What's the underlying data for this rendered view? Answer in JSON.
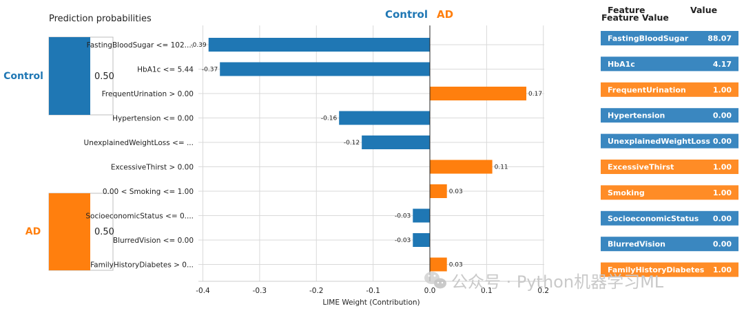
{
  "colors": {
    "control": "#1f77b4",
    "ad": "#ff7f0e",
    "table_control": "#3a87c0",
    "table_ad": "#ff8c26",
    "grid": "#d9d9d9"
  },
  "proba": {
    "title": "Prediction probabilities",
    "items": [
      {
        "label": "Control",
        "value": "0.50",
        "fraction": 0.5
      },
      {
        "label": "AD",
        "value": "0.50",
        "fraction": 0.5
      }
    ]
  },
  "header": {
    "control": "Control",
    "ad": "AD"
  },
  "chart_data": {
    "type": "bar",
    "orientation": "horizontal",
    "xlabel": "LIME Weight (Contribution)",
    "xlim": [
      -0.42,
      0.2
    ],
    "xticks": [
      "-0.4",
      "-0.3",
      "-0.2",
      "-0.1",
      "0.0",
      "0.1",
      "0.2"
    ],
    "xtick_values": [
      -0.4,
      -0.3,
      -0.2,
      -0.1,
      0.0,
      0.1,
      0.2
    ],
    "grid": true,
    "categories": [
      "FastingBloodSugar <= 102....",
      "HbA1c <= 5.44",
      "FrequentUrination > 0.00",
      "Hypertension <= 0.00",
      "UnexplainedWeightLoss <= ...",
      "ExcessiveThirst > 0.00",
      "0.00 < Smoking <= 1.00",
      "SocioeconomicStatus <= 0....",
      "BlurredVision <= 0.00",
      "FamilyHistoryDiabetes > 0..."
    ],
    "values": [
      -0.39,
      -0.37,
      0.17,
      -0.16,
      -0.12,
      0.11,
      0.03,
      -0.03,
      -0.03,
      0.03
    ],
    "labels": [
      "-0.39",
      "-0.37",
      "0.17",
      "-0.16",
      "-0.12",
      "0.11",
      "0.03",
      "-0.03",
      "-0.03",
      "0.03"
    ]
  },
  "table": {
    "head_feature": "Feature",
    "head_feature_value": "Feature Value",
    "head_value": "Value",
    "rows": [
      {
        "feature": "FastingBloodSugar",
        "value": "88.07",
        "class": "control"
      },
      {
        "feature": "HbA1c",
        "value": "4.17",
        "class": "control"
      },
      {
        "feature": "FrequentUrination",
        "value": "1.00",
        "class": "ad"
      },
      {
        "feature": "Hypertension",
        "value": "0.00",
        "class": "control"
      },
      {
        "feature": "UnexplainedWeightLoss",
        "value": "0.00",
        "class": "control"
      },
      {
        "feature": "ExcessiveThirst",
        "value": "1.00",
        "class": "ad"
      },
      {
        "feature": "Smoking",
        "value": "1.00",
        "class": "ad"
      },
      {
        "feature": "SocioeconomicStatus",
        "value": "0.00",
        "class": "control"
      },
      {
        "feature": "BlurredVision",
        "value": "0.00",
        "class": "control"
      },
      {
        "feature": "FamilyHistoryDiabetes",
        "value": "1.00",
        "class": "ad"
      }
    ]
  },
  "watermark": {
    "text": "公众号 · Python机器学习ML",
    "icon": "wechat-icon"
  }
}
